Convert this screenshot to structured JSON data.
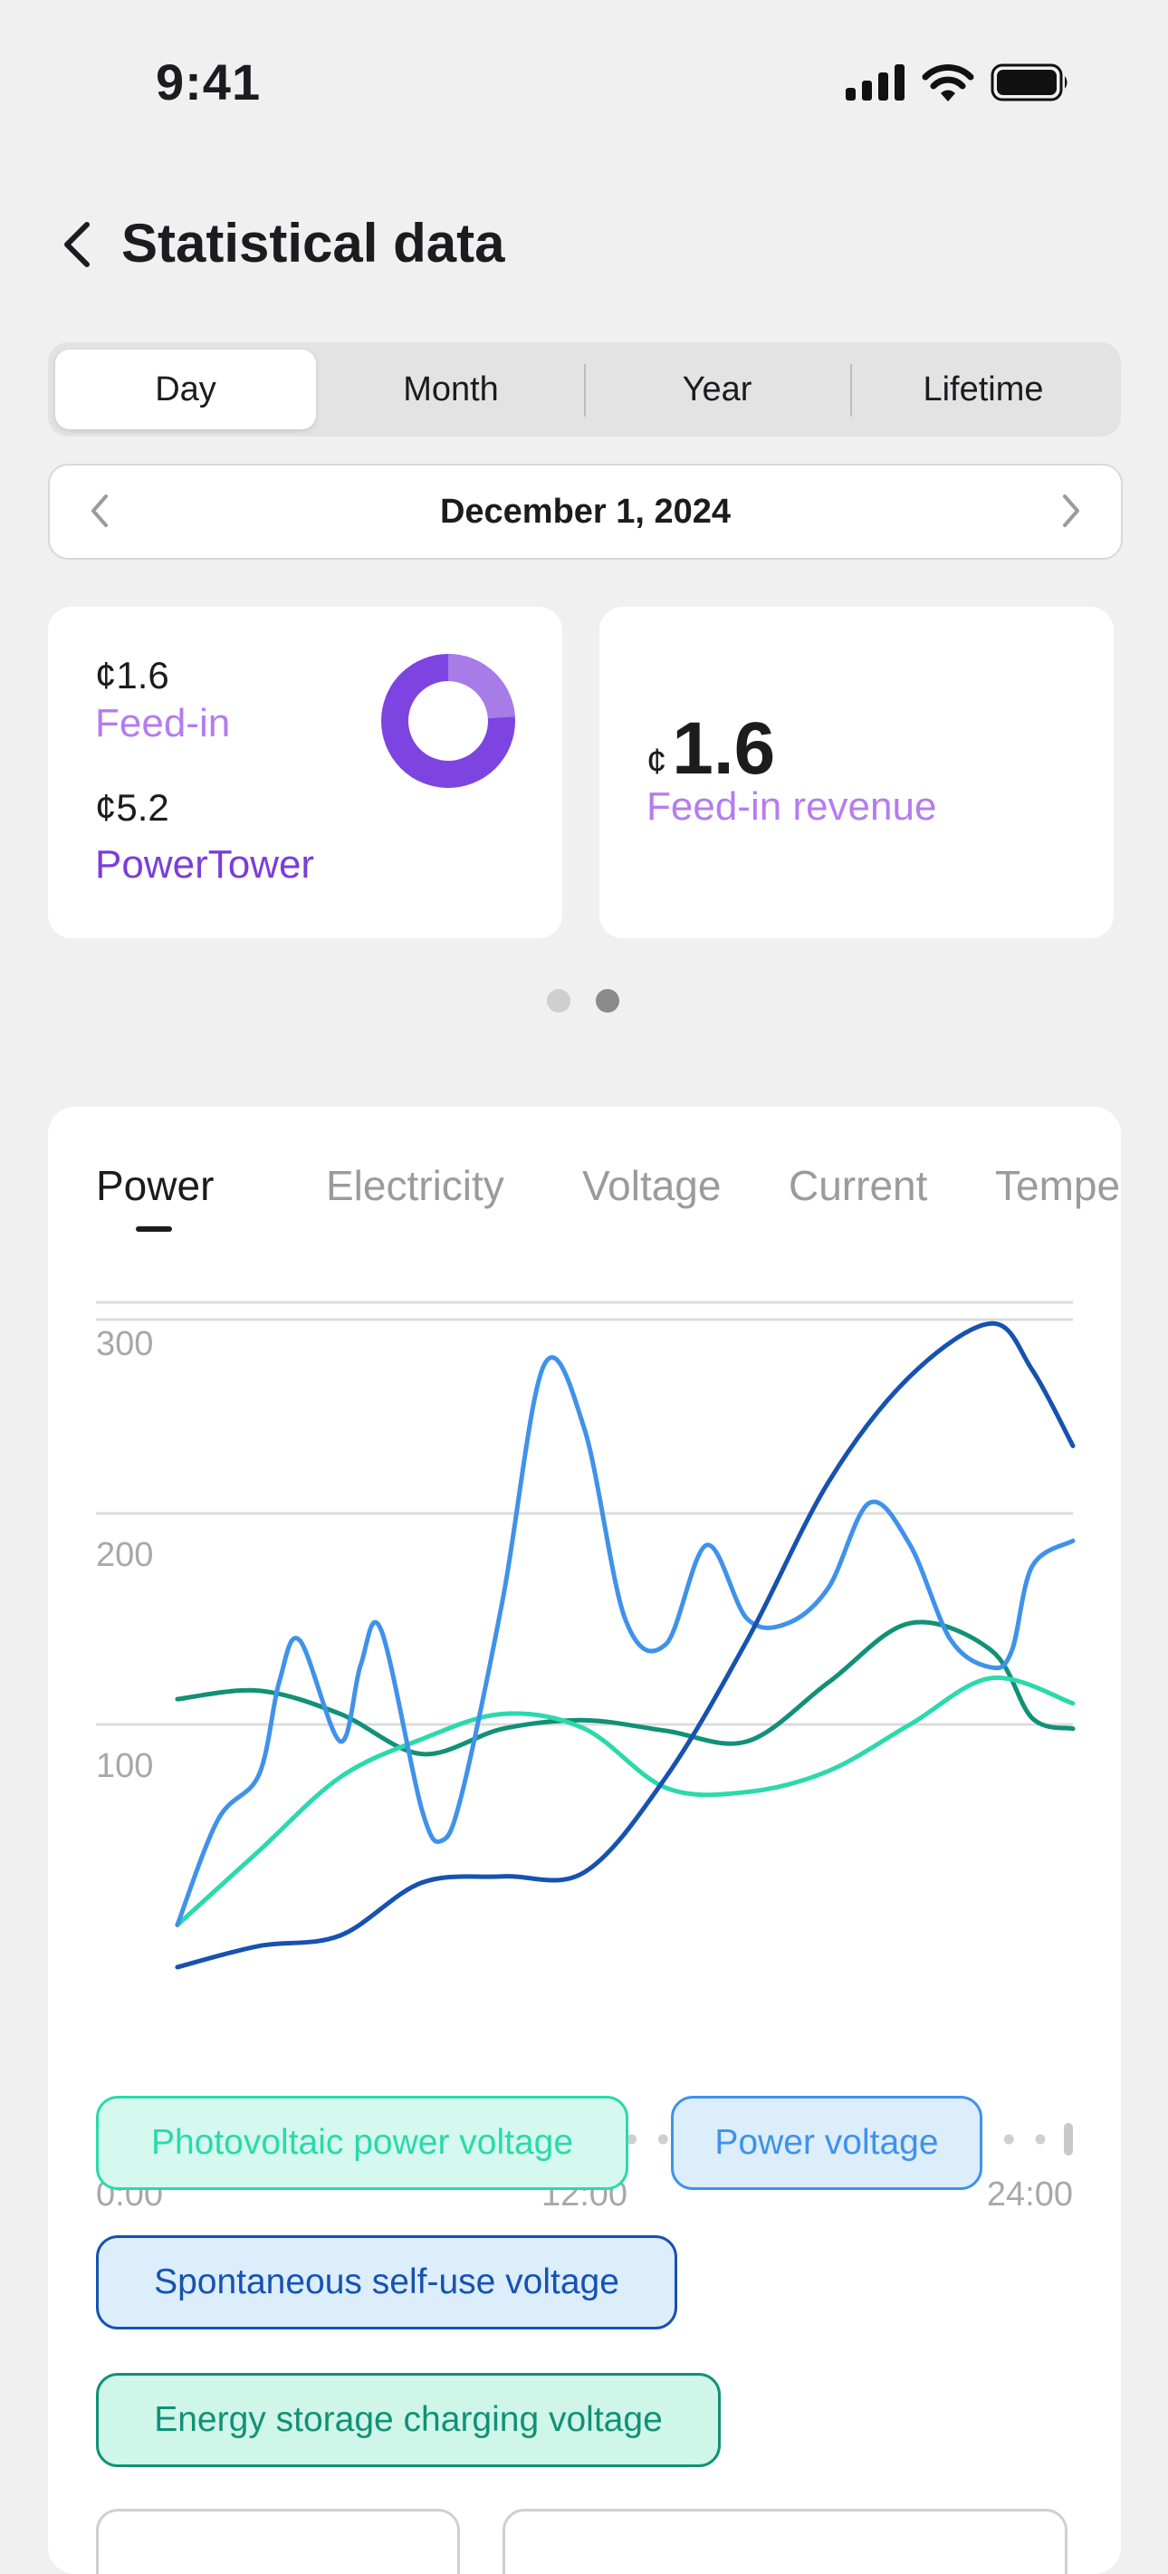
{
  "status": {
    "time": "9:41"
  },
  "header": {
    "title": "Statistical data"
  },
  "period_tabs": [
    "Day",
    "Month",
    "Year",
    "Lifetime"
  ],
  "date": {
    "label": "December 1, 2024"
  },
  "summary": {
    "feed_in_value": "¢1.6",
    "feed_in_label": "Feed-in",
    "powertower_value": "¢5.2",
    "powertower_label": "PowerTower",
    "revenue_currency": "¢",
    "revenue_value": "1.6",
    "revenue_label": "Feed-in revenue",
    "donut_feed_in_share": 0.24
  },
  "metric_tabs": [
    "Power",
    "Electricity",
    "Voltage",
    "Current",
    "Temperature"
  ],
  "chart_data": {
    "type": "line",
    "yticks": [
      100,
      200,
      300
    ],
    "ylim": [
      0,
      340
    ],
    "xlim": [
      0,
      24
    ],
    "xticks": [
      "0:00",
      "12:00",
      "24:00"
    ],
    "grid": true,
    "series": [
      {
        "name": "Photovoltaic power voltage",
        "color": "#2bd9ad",
        "x": [
          2,
          4,
          6,
          8,
          10,
          12,
          14,
          16,
          18,
          20,
          22,
          24
        ],
        "y": [
          5,
          40,
          75,
          93,
          105,
          98,
          70,
          68,
          78,
          100,
          122,
          110
        ]
      },
      {
        "name": "Power voltage",
        "color": "#3f92ea",
        "x": [
          2,
          3,
          4,
          4.5,
          5,
          6,
          6.5,
          7,
          8,
          8.5,
          9,
          10,
          11,
          12,
          13,
          14,
          15,
          16,
          17,
          18,
          19,
          20,
          21,
          22,
          22.5,
          23,
          24
        ],
        "y": [
          5,
          55,
          76,
          120,
          140,
          92,
          128,
          145,
          60,
          45,
          68,
          160,
          270,
          240,
          150,
          138,
          185,
          150,
          148,
          165,
          205,
          185,
          140,
          127,
          135,
          175,
          187
        ]
      },
      {
        "name": "Spontaneous self-use voltage",
        "color": "#1652b0",
        "x": [
          2,
          4,
          6,
          8,
          10,
          12,
          14,
          16,
          18,
          20,
          22,
          23,
          24
        ],
        "y": [
          -15,
          -5,
          0,
          25,
          28,
          30,
          75,
          140,
          215,
          265,
          290,
          268,
          232
        ]
      },
      {
        "name": "Energy storage charging voltage",
        "color": "#119177",
        "x": [
          2,
          4,
          6,
          8,
          10,
          12,
          14,
          16,
          18,
          20,
          22,
          23,
          24
        ],
        "y": [
          112,
          116,
          105,
          86,
          98,
          102,
          97,
          92,
          120,
          148,
          135,
          103,
          98
        ]
      }
    ]
  },
  "legend": [
    {
      "label": "Photovoltaic power voltage",
      "text": "#2bd9ad",
      "bg": "#d5f9ee",
      "border": "#2bd9ad"
    },
    {
      "label": "Power voltage",
      "text": "#3f92ea",
      "bg": "#dcedfb",
      "border": "#3f92ea"
    },
    {
      "label": "Spontaneous self-use voltage",
      "text": "#1652b0",
      "bg": "#dcedfb",
      "border": "#1652b0"
    },
    {
      "label": "Energy storage charging voltage",
      "text": "#119177",
      "bg": "#cff6e9",
      "border": "#119177"
    }
  ],
  "colors": {
    "purple_light": "#b57cf0",
    "purple_dark": "#7b3ddc",
    "donut_light": "#a77be8",
    "donut_dark": "#7e44e2"
  }
}
